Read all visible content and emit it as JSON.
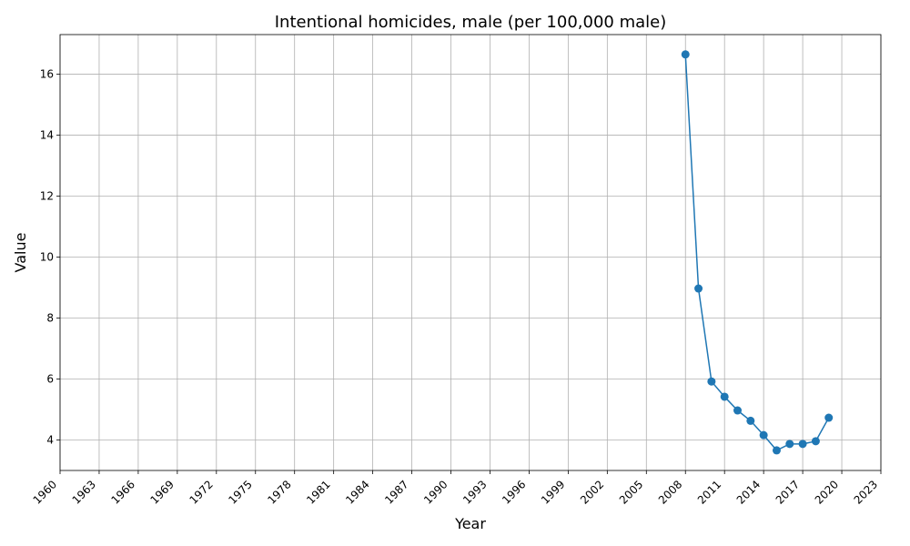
{
  "chart_data": {
    "type": "line",
    "title": "Intentional homicides, male (per 100,000 male)",
    "xlabel": "Year",
    "ylabel": "Value",
    "xlim": [
      1960,
      2023
    ],
    "ylim": [
      3,
      17.3
    ],
    "x_ticks": [
      1960,
      1963,
      1966,
      1969,
      1972,
      1975,
      1978,
      1981,
      1984,
      1987,
      1990,
      1993,
      1996,
      1999,
      2002,
      2005,
      2008,
      2011,
      2014,
      2017,
      2020,
      2023
    ],
    "y_ticks": [
      4,
      6,
      8,
      10,
      12,
      14,
      16
    ],
    "grid": true,
    "line_color": "#1f77b4",
    "marker": "circle",
    "series": [
      {
        "x": [
          2008,
          2009,
          2010,
          2011,
          2012,
          2013,
          2014,
          2015,
          2016,
          2017,
          2018,
          2019
        ],
        "values": [
          16.65,
          8.97,
          5.92,
          5.42,
          4.97,
          4.63,
          4.16,
          3.66,
          3.87,
          3.87,
          3.96,
          4.73
        ]
      }
    ]
  }
}
